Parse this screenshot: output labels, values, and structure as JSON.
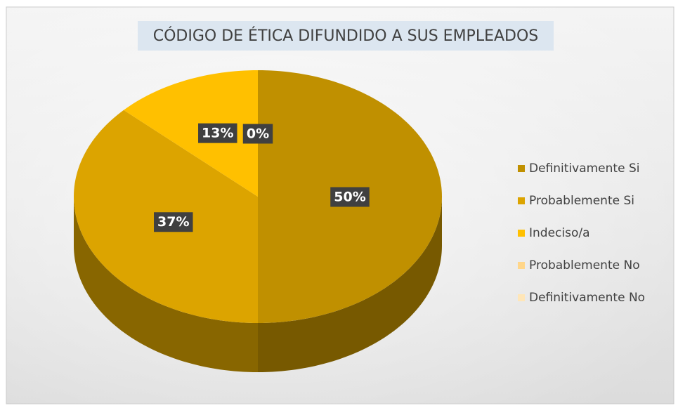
{
  "chart_data": {
    "type": "pie",
    "title": "CÓDIGO DE ÉTICA DIFUNDIDO A SUS EMPLEADOS",
    "categories": [
      "Definitivamente Si",
      "Probablemente Si",
      "Indeciso/a",
      "Probablemente No",
      "Definitivamente No"
    ],
    "values": [
      50,
      37,
      13,
      0,
      0
    ],
    "value_labels": [
      "50%",
      "37%",
      "13%",
      "0%",
      "0%"
    ],
    "colors": [
      "#c09000",
      "#dca400",
      "#ffc000",
      "#ffd68a",
      "#ffe6b8"
    ],
    "legend": "right"
  }
}
